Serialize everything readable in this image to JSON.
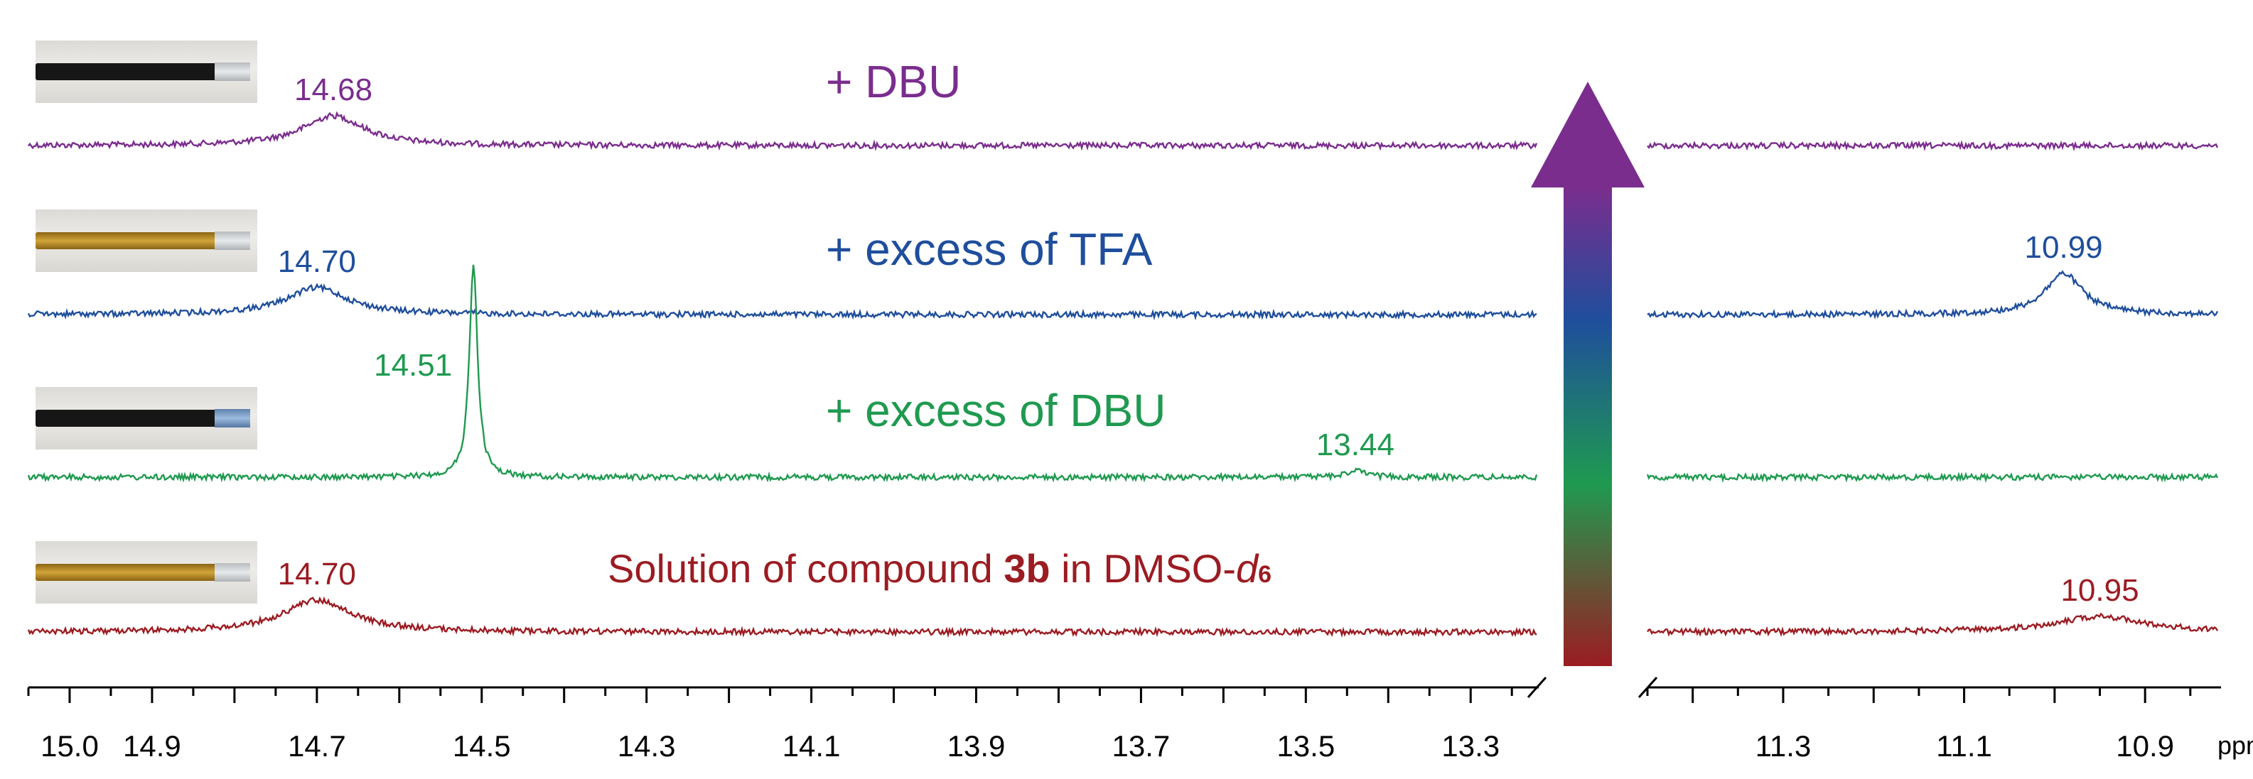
{
  "colors": {
    "dbu": "#7b2d8e",
    "tfa": "#1f4e9c",
    "excess_dbu": "#1f9a50",
    "solution": "#9b1c22",
    "axis": "#000000"
  },
  "chart_data": {
    "type": "line",
    "xlabel": "ppm",
    "x_reversed": true,
    "x_axis_segments": [
      {
        "range": [
          15.05,
          13.22
        ],
        "tick_labels": [
          "15.0",
          "14.9",
          "14.7",
          "14.5",
          "14.3",
          "14.1",
          "13.9",
          "13.7",
          "13.5",
          "13.3"
        ]
      },
      {
        "range": [
          11.45,
          10.82
        ],
        "tick_labels": [
          "11.3",
          "11.1",
          "10.9"
        ]
      }
    ],
    "series": [
      {
        "name": "+ DBU",
        "color": "#7b2d8e",
        "peaks": [
          {
            "ppm": 14.68,
            "label": "14.68",
            "height": 0.42,
            "width": 0.09
          }
        ]
      },
      {
        "name": "+ excess of TFA",
        "color": "#1f4e9c",
        "peaks": [
          {
            "ppm": 14.7,
            "label": "14.70",
            "height": 0.38,
            "width": 0.09
          },
          {
            "ppm": 10.99,
            "label": "10.99",
            "height": 0.58,
            "width": 0.05
          }
        ]
      },
      {
        "name": "+ excess of DBU",
        "color": "#1f9a50",
        "peaks": [
          {
            "ppm": 14.51,
            "label": "14.51",
            "height": 3.0,
            "width": 0.012
          },
          {
            "ppm": 13.44,
            "label": "13.44",
            "height": 0.09,
            "width": 0.03
          }
        ]
      },
      {
        "name": "Solution of compound 3b in DMSO-d6",
        "color": "#9b1c22",
        "peaks": [
          {
            "ppm": 14.7,
            "label": "14.70",
            "height": 0.45,
            "width": 0.1
          },
          {
            "ppm": 10.95,
            "label": "10.95",
            "height": 0.22,
            "width": 0.12
          }
        ]
      }
    ]
  },
  "labels": {
    "dbu": "+ DBU",
    "tfa": "+ excess of TFA",
    "excess_dbu": "+ excess of DBU",
    "solution_pre": "Solution of compound ",
    "solution_bold": "3b",
    "solution_mid": " in DMSO-",
    "solution_italic": "d",
    "solution_sub": "6"
  },
  "tubes": [
    {
      "liquid": "#161616",
      "cap": "#cfd3d6"
    },
    {
      "liquid": "#b98a1f",
      "cap": "#cfd3d6"
    },
    {
      "liquid": "#161616",
      "cap": "#6d8fb6"
    },
    {
      "liquid": "#b98a1f",
      "cap": "#cfd3d6"
    }
  ],
  "arrow_gradient": [
    "#9b1c22",
    "#1f9a50",
    "#1f4e9c",
    "#7b2d8e"
  ]
}
